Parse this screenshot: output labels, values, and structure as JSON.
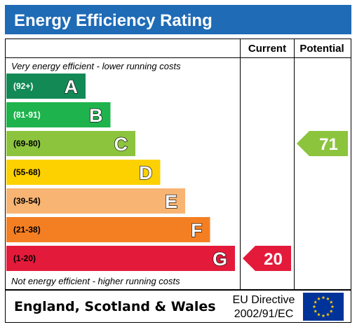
{
  "header": {
    "title": "Energy Efficiency Rating",
    "title_bg": "#1f6bb6"
  },
  "table": {
    "col_current": "Current",
    "col_potential": "Potential",
    "top_note": "Very energy efficient - lower running costs",
    "bottom_note": "Not energy efficient - higher running costs"
  },
  "chart_data": {
    "type": "bar",
    "title": "Energy Efficiency Rating",
    "categories": [
      "A",
      "B",
      "C",
      "D",
      "E",
      "F",
      "G"
    ],
    "bands": [
      {
        "letter": "A",
        "range": "(92+)",
        "min": 92,
        "max": null,
        "color": "#138a56",
        "label_light": true
      },
      {
        "letter": "B",
        "range": "(81-91)",
        "min": 81,
        "max": 91,
        "color": "#1eb34c",
        "label_light": true
      },
      {
        "letter": "C",
        "range": "(69-80)",
        "min": 69,
        "max": 80,
        "color": "#8cc43e",
        "label_light": false
      },
      {
        "letter": "D",
        "range": "(55-68)",
        "min": 55,
        "max": 68,
        "color": "#fdd100",
        "label_light": false
      },
      {
        "letter": "E",
        "range": "(39-54)",
        "min": 39,
        "max": 54,
        "color": "#f8b472",
        "label_light": false
      },
      {
        "letter": "F",
        "range": "(21-38)",
        "min": 21,
        "max": 38,
        "color": "#f47f23",
        "label_light": false
      },
      {
        "letter": "G",
        "range": "(1-20)",
        "min": 1,
        "max": 20,
        "color": "#e41a3b",
        "label_light": false
      }
    ],
    "current": {
      "value": 20,
      "band": "G",
      "color": "#e41a3b"
    },
    "potential": {
      "value": 71,
      "band": "C",
      "color": "#8cc43e"
    }
  },
  "footer": {
    "country": "England, Scotland & Wales",
    "directive_line1": "EU Directive",
    "directive_line2": "2002/91/EC",
    "flag_bg": "#003399",
    "flag_star": "#ffcc00"
  }
}
